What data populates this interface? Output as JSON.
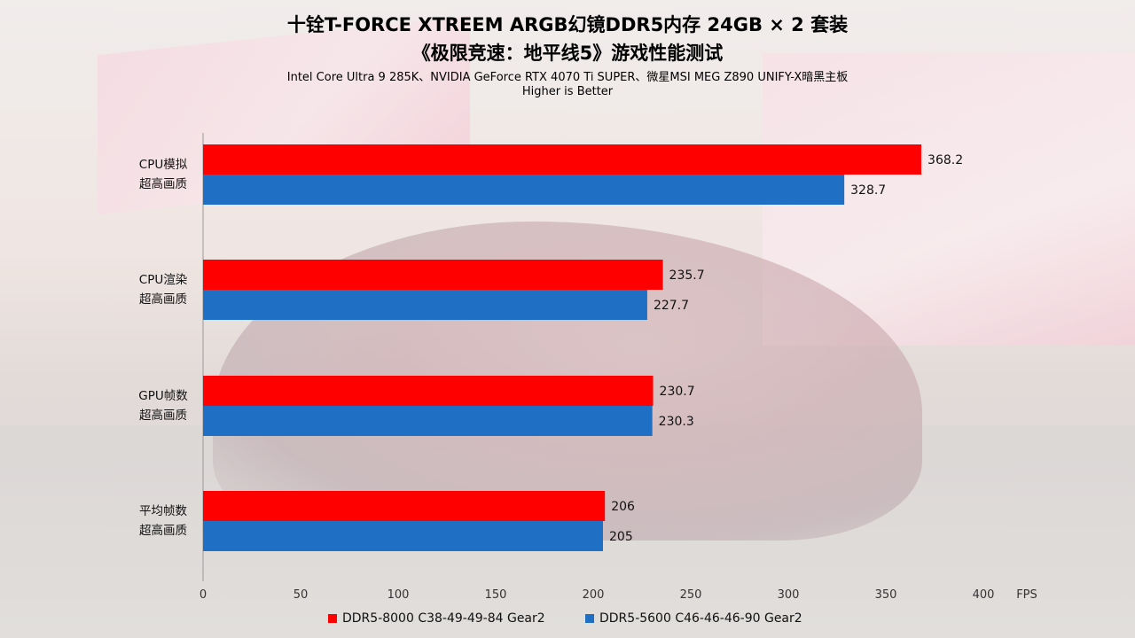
{
  "title_line1": "十铨T-FORCE XTREEM ARGB幻镜DDR5内存 24GB × 2 套装",
  "title_line2": "《极限竞速：地平线5》游戏性能测试",
  "subtitle_system": "Intel Core Ultra 9 285K、NVIDIA GeForce RTX 4070 Ti SUPER、微星MSI MEG Z890 UNIFY-X暗黑主板",
  "subtitle_note": "Higher is Better",
  "chart_data": {
    "type": "bar",
    "orientation": "horizontal",
    "categories": [
      {
        "line1": "CPU模拟",
        "line2": "超高画质"
      },
      {
        "line1": "CPU渲染",
        "line2": "超高画质"
      },
      {
        "line1": "GPU帧数",
        "line2": "超高画质"
      },
      {
        "line1": "平均帧数",
        "line2": "超高画质"
      }
    ],
    "series": [
      {
        "name": "DDR5-8000 C38-49-49-84 Gear2",
        "color": "#ff0000",
        "values": [
          368.2,
          235.7,
          230.7,
          206
        ]
      },
      {
        "name": "DDR5-5600 C46-46-46-90 Gear2",
        "color": "#1f6fc4",
        "values": [
          328.7,
          227.7,
          230.3,
          205
        ]
      }
    ],
    "value_labels": [
      [
        "368.2",
        "235.7",
        "230.7",
        "206"
      ],
      [
        "328.7",
        "227.7",
        "230.3",
        "205"
      ]
    ],
    "xlim": [
      0,
      400
    ],
    "xticks": [
      "0",
      "50",
      "100",
      "150",
      "200",
      "250",
      "300",
      "350",
      "400"
    ],
    "xlabel": "FPS",
    "grid": false,
    "legend_position": "bottom"
  }
}
